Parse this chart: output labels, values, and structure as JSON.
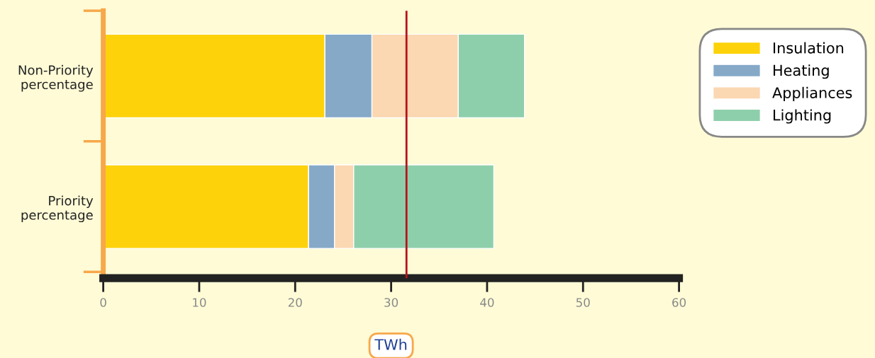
{
  "chart_data": {
    "type": "bar",
    "orientation": "horizontal",
    "stacked": true,
    "xlabel": "TWh",
    "categories": [
      "Non-Priority\npercentage",
      "Priority\npercentage"
    ],
    "series": [
      {
        "name": "Insulation",
        "color": "#fdd20a",
        "values": [
          23.1,
          21.4
        ]
      },
      {
        "name": "Heating",
        "color": "#86a9c8",
        "values": [
          4.9,
          2.7
        ]
      },
      {
        "name": "Appliances",
        "color": "#fbd7b2",
        "values": [
          9.0,
          2.0
        ]
      },
      {
        "name": "Lighting",
        "color": "#8ecfab",
        "values": [
          6.9,
          14.6
        ]
      }
    ],
    "xlim": [
      0,
      60
    ],
    "xticks": [
      0,
      10,
      20,
      30,
      40,
      50,
      60
    ],
    "ref_lines": [
      {
        "axis": "x",
        "value": 31.6,
        "color": "#b5121b"
      }
    ],
    "grid": false,
    "legend": "top right"
  }
}
